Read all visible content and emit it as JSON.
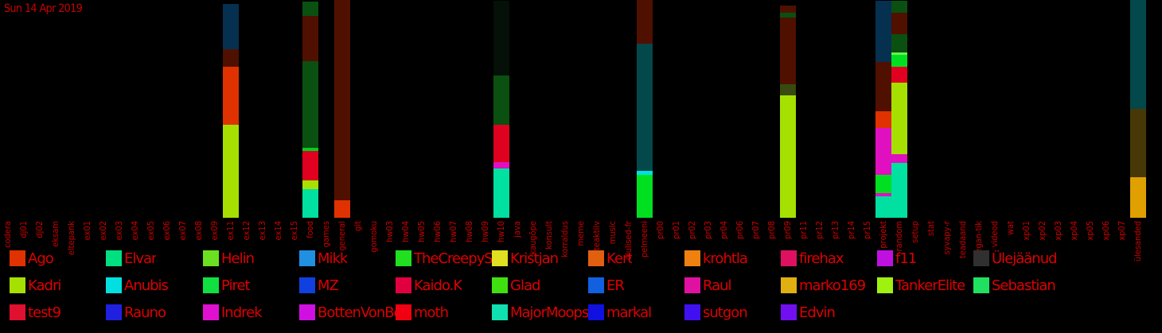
{
  "date_label": "Sun 14 Apr 2019",
  "chart_data": {
    "type": "bar",
    "stacked": true,
    "categories": [
      "codera",
      "dj01",
      "dj02",
      "eksam",
      "eltepank",
      "ex01",
      "ex02",
      "ex03",
      "ex04",
      "ex05",
      "ex06",
      "ex07",
      "ex08",
      "ex09",
      "ex11",
      "ex12",
      "ex13",
      "ex14",
      "ex15",
      "food",
      "games",
      "general",
      "git",
      "gomoku",
      "hw03",
      "hw04",
      "hw05",
      "hw06",
      "hw07",
      "hw08",
      "hw09",
      "hw10",
      "java",
      "kaugõpe",
      "konsult",
      "korraldus",
      "meme",
      "mitteaktiiv",
      "music",
      "olulised-fr",
      "pelmeeni",
      "pr00",
      "pr01",
      "pr02",
      "pr03",
      "pr04",
      "pr06",
      "pr07",
      "pr08",
      "pr09",
      "pr11",
      "pr12",
      "pr13",
      "pr14",
      "pr15",
      "projekt",
      "random",
      "setup",
      "stat",
      "syvapy-r",
      "teadaand",
      "vegan-tik",
      "videod",
      "wat",
      "xp01",
      "xp02",
      "xp03",
      "xp04",
      "xp05",
      "xp06",
      "xp07",
      "ülesanded"
    ],
    "stacks": {
      "ex11": [
        {
          "color": "#a6e000",
          "value": 117
        },
        {
          "color": "#e03200",
          "value": 73
        },
        {
          "color": "#501000",
          "value": 22
        },
        {
          "color": "#063050",
          "value": 57
        }
      ],
      "food": [
        {
          "color": "#00e0a0",
          "value": 36
        },
        {
          "color": "#a6e000",
          "value": 11
        },
        {
          "color": "#e00020",
          "value": 37
        },
        {
          "color": "#00d020",
          "value": 4
        },
        {
          "color": "#0a5010",
          "value": 109
        },
        {
          "color": "#501000",
          "value": 57
        },
        {
          "color": "#0a5010",
          "value": 18
        }
      ],
      "general": [
        {
          "color": "#e03200",
          "value": 22
        },
        {
          "color": "#501000",
          "value": 252
        }
      ],
      "hw10": [
        {
          "color": "#00e0a0",
          "value": 62
        },
        {
          "color": "#e010c0",
          "value": 8
        },
        {
          "color": "#e00020",
          "value": 47
        },
        {
          "color": "#0a5010",
          "value": 62
        },
        {
          "color": "#041008",
          "value": 94
        }
      ],
      "pelmeeni": [
        {
          "color": "#00e020",
          "value": 54
        },
        {
          "color": "#00e0e0",
          "value": 5
        },
        {
          "color": "#03484a",
          "value": 160
        },
        {
          "color": "#501000",
          "value": 55
        }
      ],
      "pr09": [
        {
          "color": "#a6e000",
          "value": 154
        },
        {
          "color": "#384a10",
          "value": 14
        },
        {
          "color": "#501000",
          "value": 84
        },
        {
          "color": "#0a5010",
          "value": 6
        },
        {
          "color": "#501000",
          "value": 9
        }
      ],
      "projekt": [
        {
          "color": "#00e0a0",
          "value": 27
        },
        {
          "color": "#e010c0",
          "value": 4
        },
        {
          "color": "#00e020",
          "value": 23
        },
        {
          "color": "#e010c0",
          "value": 59
        },
        {
          "color": "#e03200",
          "value": 21
        },
        {
          "color": "#501000",
          "value": 62
        },
        {
          "color": "#063050",
          "value": 77
        }
      ],
      "random": [
        {
          "color": "#00e0a0",
          "value": 69
        },
        {
          "color": "#e010c0",
          "value": 11
        },
        {
          "color": "#a6e000",
          "value": 90
        },
        {
          "color": "#e00020",
          "value": 20
        },
        {
          "color": "#00e020",
          "value": 15
        },
        {
          "color": "#6af050",
          "value": 3
        },
        {
          "color": "#0a5010",
          "value": 23
        },
        {
          "color": "#501000",
          "value": 27
        },
        {
          "color": "#0a5010",
          "value": 15
        }
      ],
      "ülesanded": [
        {
          "color": "#e0a000",
          "value": 51
        },
        {
          "color": "#483808",
          "value": 86
        },
        {
          "color": "#03484a",
          "value": 137
        }
      ]
    },
    "ylim": [
      0,
      274
    ]
  },
  "legend": [
    {
      "name": "Ago",
      "color": "#e03200"
    },
    {
      "name": "Elvar",
      "color": "#00e080"
    },
    {
      "name": "Helin",
      "color": "#6ae020"
    },
    {
      "name": "Mikk",
      "color": "#2090e0"
    },
    {
      "name": "TheCreepySh",
      "color": "#20e020"
    },
    {
      "name": "Kristjan",
      "color": "#e0e020"
    },
    {
      "name": "Kert",
      "color": "#e06010"
    },
    {
      "name": "krohtla",
      "color": "#f08010"
    },
    {
      "name": "firehax",
      "color": "#e01060"
    },
    {
      "name": "f11",
      "color": "#c010e0"
    },
    {
      "name": "Ülejäänud",
      "color": "#303030"
    },
    {
      "name": "Kadri",
      "color": "#a6e000"
    },
    {
      "name": "Anubis",
      "color": "#00e0e0"
    },
    {
      "name": "Piret",
      "color": "#10e040"
    },
    {
      "name": "MZ",
      "color": "#1040e0"
    },
    {
      "name": "Kaido.K",
      "color": "#e00040"
    },
    {
      "name": "Glad",
      "color": "#40e010"
    },
    {
      "name": "ER",
      "color": "#1060e0"
    },
    {
      "name": "Raul",
      "color": "#e010a0"
    },
    {
      "name": "marko169",
      "color": "#e0b010"
    },
    {
      "name": "TankerElite",
      "color": "#a0f010"
    },
    {
      "name": "Sebastian",
      "color": "#20e060"
    },
    {
      "name": "test9",
      "color": "#e01030"
    },
    {
      "name": "Rauno",
      "color": "#2020e0"
    },
    {
      "name": "Indrek",
      "color": "#e010d0"
    },
    {
      "name": "BottenVonBot",
      "color": "#d010e0"
    },
    {
      "name": "moth",
      "color": "#f00010"
    },
    {
      "name": "MajorMoopsy",
      "color": "#10e0b0"
    },
    {
      "name": "markal",
      "color": "#1010e0"
    },
    {
      "name": "sutgon",
      "color": "#4010f0"
    },
    {
      "name": "Edvin",
      "color": "#7010f0"
    }
  ]
}
